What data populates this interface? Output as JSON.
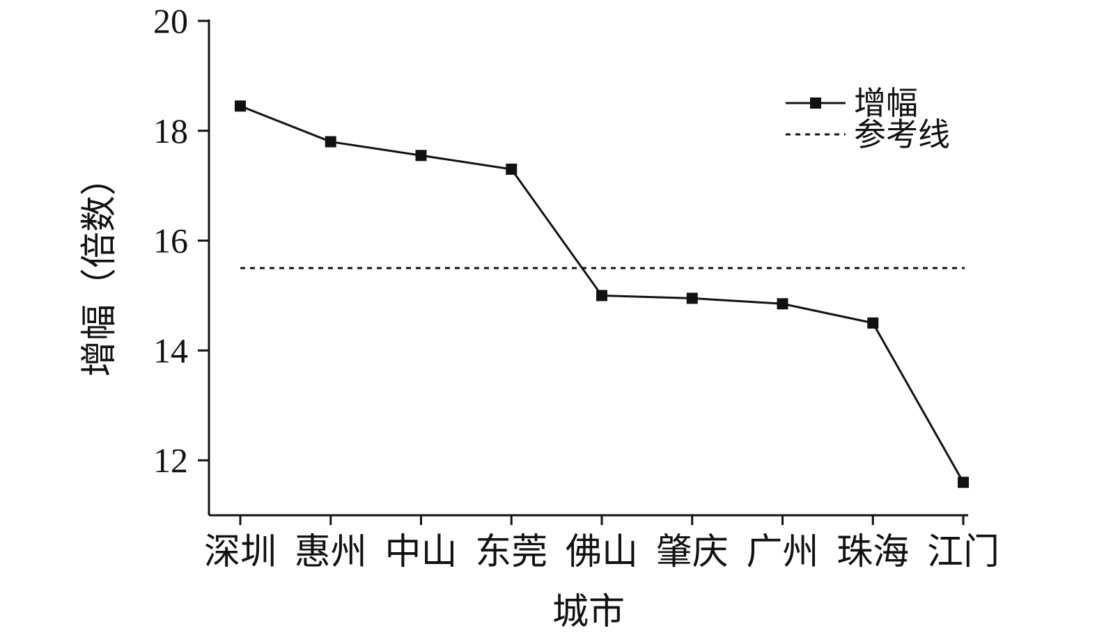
{
  "chart_data": {
    "type": "line",
    "title": "",
    "xlabel": "城市",
    "ylabel": "增幅（倍数）",
    "categories": [
      "深圳",
      "惠州",
      "中山",
      "东莞",
      "佛山",
      "肇庆",
      "广州",
      "珠海",
      "江门"
    ],
    "series": [
      {
        "name": "增幅",
        "type": "line",
        "marker": "square",
        "line_style": "solid",
        "values": [
          18.45,
          17.8,
          17.55,
          17.3,
          15.0,
          14.95,
          14.85,
          14.5,
          11.6
        ]
      },
      {
        "name": "参考线",
        "type": "reference-line",
        "line_style": "dashed",
        "value": 15.5
      }
    ],
    "ylim": [
      11,
      20
    ],
    "yticks": [
      20,
      18,
      16,
      14,
      12
    ],
    "grid": false,
    "legend_position": "upper-right",
    "colors": {
      "ink": "#111111",
      "background": "#ffffff"
    }
  }
}
